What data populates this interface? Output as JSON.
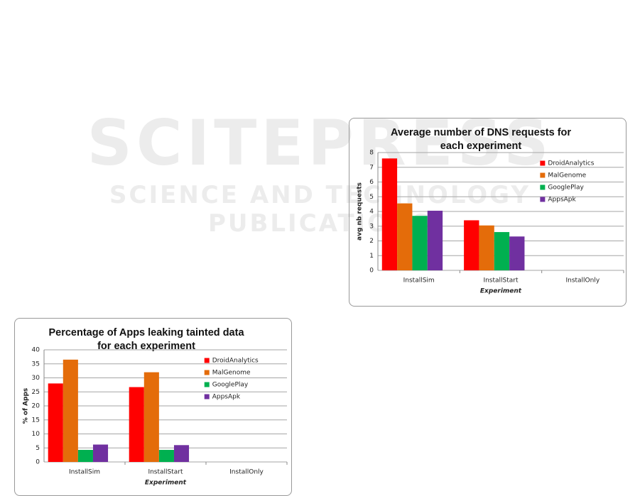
{
  "watermark": {
    "title": "SCITEPRESS",
    "subtitle": "SCIENCE AND TECHNOLOGY PUBLICATIONS"
  },
  "chart_data": [
    {
      "type": "bar",
      "title": "Average number of DNS requests for each experiment",
      "categories": [
        "InstallSim",
        "InstallStart",
        "InstallOnly"
      ],
      "series": [
        {
          "name": "DroidAnalytics",
          "color": "#ff0000",
          "values": [
            7.6,
            3.4,
            0
          ]
        },
        {
          "name": "MalGenome",
          "color": "#e46c0a",
          "values": [
            4.55,
            3.05,
            0
          ]
        },
        {
          "name": "GooglePlay",
          "color": "#00b050",
          "values": [
            3.7,
            2.6,
            0
          ]
        },
        {
          "name": "AppsApk",
          "color": "#7030a0",
          "values": [
            4.05,
            2.3,
            0
          ]
        }
      ],
      "ylim": [
        0,
        8
      ],
      "yticks": [
        0,
        1,
        2,
        3,
        4,
        5,
        6,
        7,
        8
      ],
      "grid": true,
      "y_label": "avg nb requests",
      "x_label": "Experiment",
      "legend": "right"
    },
    {
      "type": "bar",
      "title": "Percentage of Apps leaking tainted data for each experiment",
      "categories": [
        "InstallSim",
        "InstallStart",
        "InstallOnly"
      ],
      "series": [
        {
          "name": "DroidAnalytics",
          "color": "#ff0000",
          "values": [
            28,
            26.7,
            0
          ]
        },
        {
          "name": "MalGenome",
          "color": "#e46c0a",
          "values": [
            36.5,
            32,
            0
          ]
        },
        {
          "name": "GooglePlay",
          "color": "#00b050",
          "values": [
            4.3,
            4.3,
            0
          ]
        },
        {
          "name": "AppsApk",
          "color": "#7030a0",
          "values": [
            6.2,
            6,
            0
          ]
        }
      ],
      "ylim": [
        0,
        40
      ],
      "yticks": [
        0,
        5,
        10,
        15,
        20,
        25,
        30,
        35,
        40
      ],
      "grid": true,
      "y_label": "% of Apps",
      "x_label": "Experiment",
      "legend": "right"
    }
  ]
}
